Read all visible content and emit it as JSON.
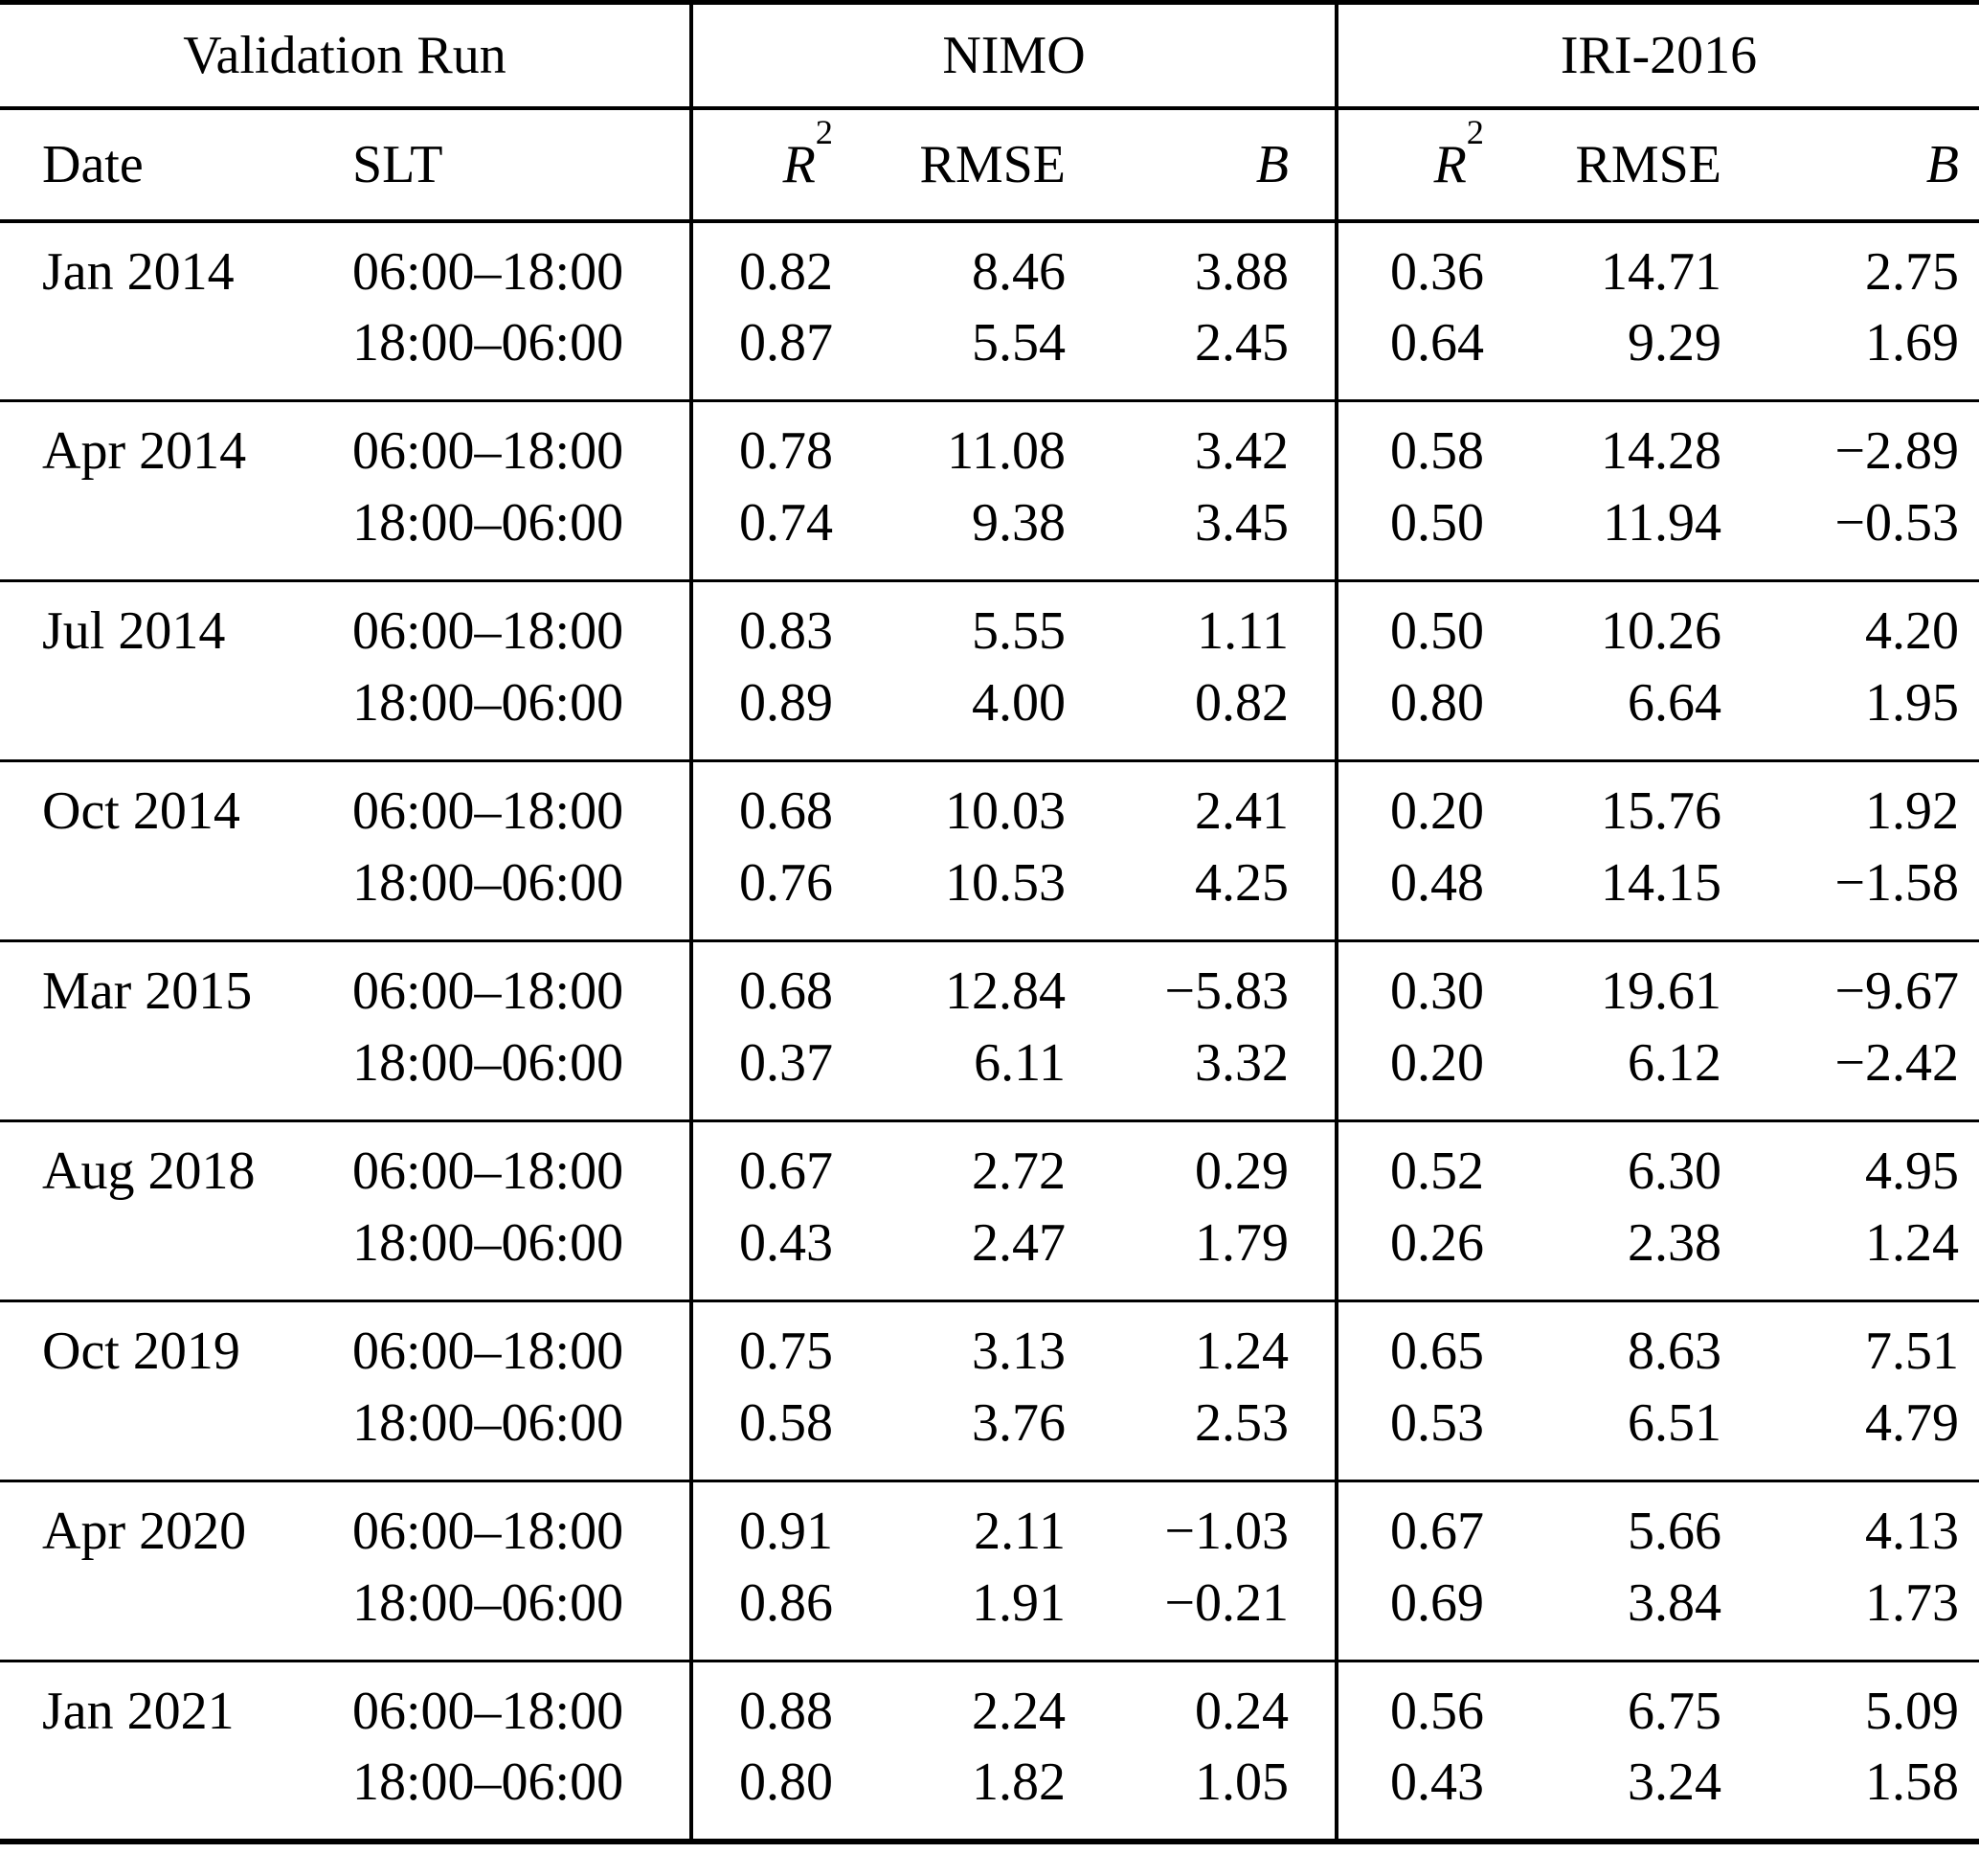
{
  "page": {
    "background_color": "#ffffff",
    "text_color": "#000000"
  },
  "table": {
    "header": {
      "validation_run": "Validation Run",
      "nimo": "NIMO",
      "iri": "IRI-2016",
      "date": "Date",
      "slt": "SLT",
      "r2_base": "R",
      "r2_sup": "2",
      "rmse": "RMSE",
      "b": "B"
    },
    "groups": [
      {
        "date": "Jan 2014",
        "rows": [
          {
            "slt": "06:00–18:00",
            "nimo_r2": "0.82",
            "nimo_rmse": "8.46",
            "nimo_b": "3.88",
            "iri_r2": "0.36",
            "iri_rmse": "14.71",
            "iri_b": "2.75"
          },
          {
            "slt": "18:00–06:00",
            "nimo_r2": "0.87",
            "nimo_rmse": "5.54",
            "nimo_b": "2.45",
            "iri_r2": "0.64",
            "iri_rmse": "9.29",
            "iri_b": "1.69"
          }
        ]
      },
      {
        "date": "Apr 2014",
        "rows": [
          {
            "slt": "06:00–18:00",
            "nimo_r2": "0.78",
            "nimo_rmse": "11.08",
            "nimo_b": "3.42",
            "iri_r2": "0.58",
            "iri_rmse": "14.28",
            "iri_b": "−2.89"
          },
          {
            "slt": "18:00–06:00",
            "nimo_r2": "0.74",
            "nimo_rmse": "9.38",
            "nimo_b": "3.45",
            "iri_r2": "0.50",
            "iri_rmse": "11.94",
            "iri_b": "−0.53"
          }
        ]
      },
      {
        "date": "Jul 2014",
        "rows": [
          {
            "slt": "06:00–18:00",
            "nimo_r2": "0.83",
            "nimo_rmse": "5.55",
            "nimo_b": "1.11",
            "iri_r2": "0.50",
            "iri_rmse": "10.26",
            "iri_b": "4.20"
          },
          {
            "slt": "18:00–06:00",
            "nimo_r2": "0.89",
            "nimo_rmse": "4.00",
            "nimo_b": "0.82",
            "iri_r2": "0.80",
            "iri_rmse": "6.64",
            "iri_b": "1.95"
          }
        ]
      },
      {
        "date": "Oct 2014",
        "rows": [
          {
            "slt": "06:00–18:00",
            "nimo_r2": "0.68",
            "nimo_rmse": "10.03",
            "nimo_b": "2.41",
            "iri_r2": "0.20",
            "iri_rmse": "15.76",
            "iri_b": "1.92"
          },
          {
            "slt": "18:00–06:00",
            "nimo_r2": "0.76",
            "nimo_rmse": "10.53",
            "nimo_b": "4.25",
            "iri_r2": "0.48",
            "iri_rmse": "14.15",
            "iri_b": "−1.58"
          }
        ]
      },
      {
        "date": "Mar 2015",
        "rows": [
          {
            "slt": "06:00–18:00",
            "nimo_r2": "0.68",
            "nimo_rmse": "12.84",
            "nimo_b": "−5.83",
            "iri_r2": "0.30",
            "iri_rmse": "19.61",
            "iri_b": "−9.67"
          },
          {
            "slt": "18:00–06:00",
            "nimo_r2": "0.37",
            "nimo_rmse": "6.11",
            "nimo_b": "3.32",
            "iri_r2": "0.20",
            "iri_rmse": "6.12",
            "iri_b": "−2.42"
          }
        ]
      },
      {
        "date": "Aug 2018",
        "rows": [
          {
            "slt": "06:00–18:00",
            "nimo_r2": "0.67",
            "nimo_rmse": "2.72",
            "nimo_b": "0.29",
            "iri_r2": "0.52",
            "iri_rmse": "6.30",
            "iri_b": "4.95"
          },
          {
            "slt": "18:00–06:00",
            "nimo_r2": "0.43",
            "nimo_rmse": "2.47",
            "nimo_b": "1.79",
            "iri_r2": "0.26",
            "iri_rmse": "2.38",
            "iri_b": "1.24"
          }
        ]
      },
      {
        "date": "Oct 2019",
        "rows": [
          {
            "slt": "06:00–18:00",
            "nimo_r2": "0.75",
            "nimo_rmse": "3.13",
            "nimo_b": "1.24",
            "iri_r2": "0.65",
            "iri_rmse": "8.63",
            "iri_b": "7.51"
          },
          {
            "slt": "18:00–06:00",
            "nimo_r2": "0.58",
            "nimo_rmse": "3.76",
            "nimo_b": "2.53",
            "iri_r2": "0.53",
            "iri_rmse": "6.51",
            "iri_b": "4.79"
          }
        ]
      },
      {
        "date": "Apr 2020",
        "rows": [
          {
            "slt": "06:00–18:00",
            "nimo_r2": "0.91",
            "nimo_rmse": "2.11",
            "nimo_b": "−1.03",
            "iri_r2": "0.67",
            "iri_rmse": "5.66",
            "iri_b": "4.13"
          },
          {
            "slt": "18:00–06:00",
            "nimo_r2": "0.86",
            "nimo_rmse": "1.91",
            "nimo_b": "−0.21",
            "iri_r2": "0.69",
            "iri_rmse": "3.84",
            "iri_b": "1.73"
          }
        ]
      },
      {
        "date": "Jan 2021",
        "rows": [
          {
            "slt": "06:00–18:00",
            "nimo_r2": "0.88",
            "nimo_rmse": "2.24",
            "nimo_b": "0.24",
            "iri_r2": "0.56",
            "iri_rmse": "6.75",
            "iri_b": "5.09"
          },
          {
            "slt": "18:00–06:00",
            "nimo_r2": "0.80",
            "nimo_rmse": "1.82",
            "nimo_b": "1.05",
            "iri_r2": "0.43",
            "iri_rmse": "3.24",
            "iri_b": "1.58"
          }
        ]
      }
    ]
  }
}
